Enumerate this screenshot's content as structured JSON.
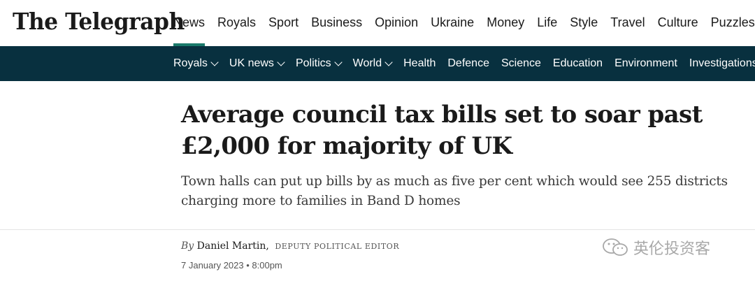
{
  "site": {
    "logo": "The Telegraph"
  },
  "main_nav": [
    "News",
    "Royals",
    "Sport",
    "Business",
    "Opinion",
    "Ukraine",
    "Money",
    "Life",
    "Style",
    "Travel",
    "Culture",
    "Puzzles"
  ],
  "active_nav": "News",
  "colors": {
    "subnav_bg": "#08303f",
    "accent": "#1a7a6a"
  },
  "sub_nav": [
    {
      "label": "Royals",
      "dropdown": true
    },
    {
      "label": "UK news",
      "dropdown": true
    },
    {
      "label": "Politics",
      "dropdown": true
    },
    {
      "label": "World",
      "dropdown": true
    },
    {
      "label": "Health",
      "dropdown": false
    },
    {
      "label": "Defence",
      "dropdown": false
    },
    {
      "label": "Science",
      "dropdown": false
    },
    {
      "label": "Education",
      "dropdown": false
    },
    {
      "label": "Environment",
      "dropdown": false
    },
    {
      "label": "Investigations",
      "dropdown": false
    }
  ],
  "article": {
    "headline": "Average council tax bills set to soar past £2,000 for majority of UK",
    "standfirst": "Town halls can put up bills by as much as five per cent which would see 255 districts charging more to families in Band D homes",
    "by_prefix": "By",
    "author": "Daniel Martin,",
    "author_role": "DEPUTY POLITICAL EDITOR",
    "date": "7 January 2023 • 8:00pm"
  },
  "watermark": {
    "text": "英伦投资客",
    "icon": "wechat-icon"
  }
}
